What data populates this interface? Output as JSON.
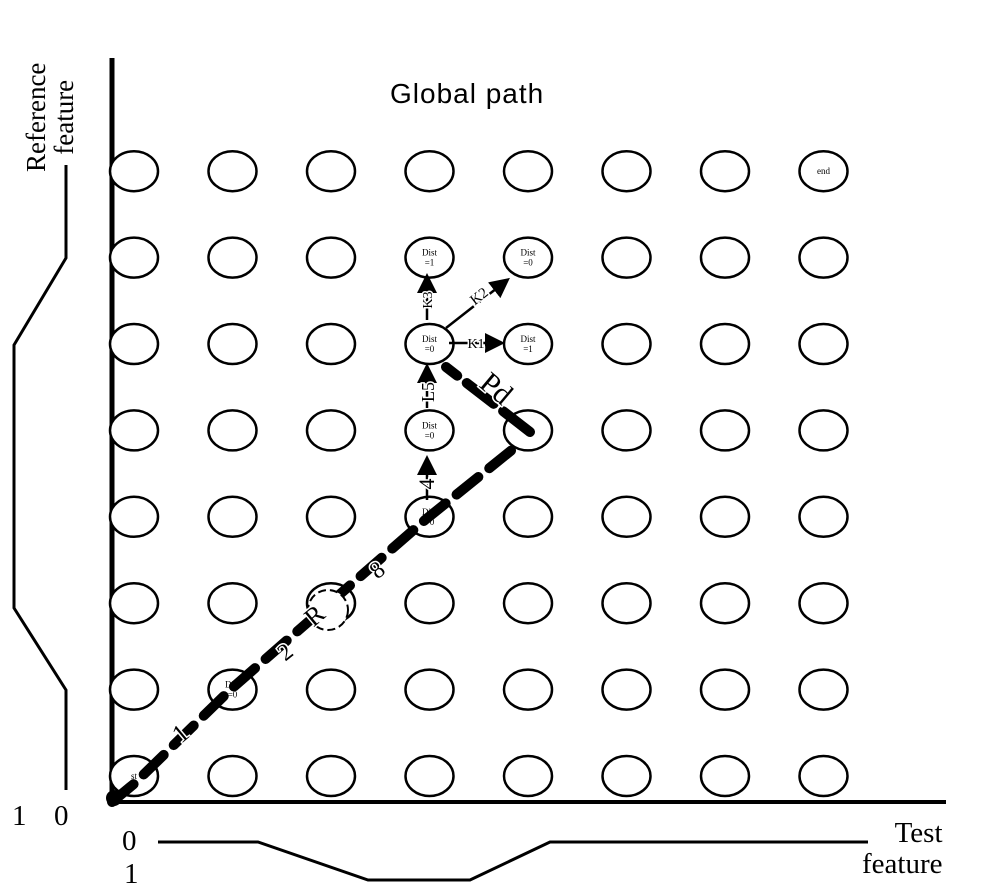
{
  "diagram": {
    "title": "Global path",
    "y_axis_label": [
      "Reference",
      "feature"
    ],
    "x_axis_label": [
      "Test",
      "feature"
    ],
    "y_profile_ticks": [
      "1",
      "0"
    ],
    "x_profile_ticks": [
      "0",
      "1"
    ],
    "grid": {
      "columns": 8,
      "rows": 8
    },
    "node_labels": [
      {
        "col": 0,
        "row": 0,
        "lines": [
          "st"
        ]
      },
      {
        "col": 1,
        "row": 1,
        "lines": [
          "Dist",
          "=0"
        ]
      },
      {
        "col": 3,
        "row": 3,
        "lines": [
          "Dist",
          "=0"
        ]
      },
      {
        "col": 3,
        "row": 4,
        "lines": [
          "Dist",
          "=0"
        ]
      },
      {
        "col": 3,
        "row": 5,
        "lines": [
          "Dist",
          "=0"
        ]
      },
      {
        "col": 4,
        "row": 5,
        "lines": [
          "Dist",
          "=1"
        ]
      },
      {
        "col": 3,
        "row": 6,
        "lines": [
          "Dist",
          "=1"
        ]
      },
      {
        "col": 4,
        "row": 6,
        "lines": [
          "Dist",
          "=0"
        ]
      },
      {
        "col": 7,
        "row": 7,
        "lines": [
          "end"
        ]
      }
    ],
    "path_labels": [
      "1",
      "2",
      "R",
      "8",
      "4",
      "L5",
      "Pd",
      "K1",
      "K2",
      "K3"
    ]
  }
}
